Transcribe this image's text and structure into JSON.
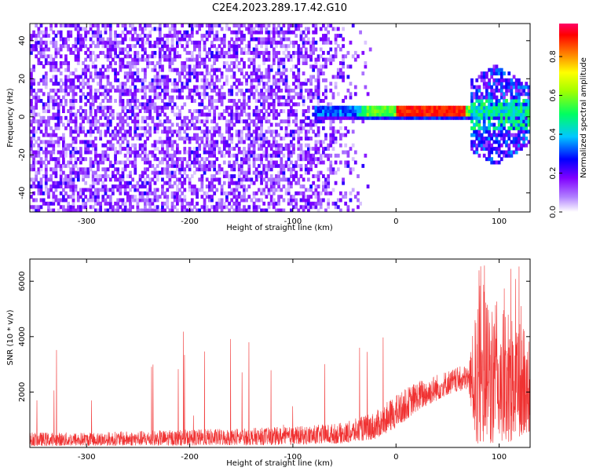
{
  "figure_title": "C2E4.2023.289.17.42.G10",
  "colors": {
    "snr_line": "#f03232",
    "spectrogram_background": "#a000ff",
    "axis": "#000000"
  },
  "chart_data": [
    {
      "type": "heatmap",
      "name": "spectrogram",
      "xlabel": "Height of straight line (km)",
      "ylabel": "Frequency (Hz)",
      "xlim": [
        -355,
        130
      ],
      "ylim": [
        -50,
        49
      ],
      "xticks": [
        -300,
        -200,
        -100,
        0,
        100
      ],
      "yticks": [
        -40,
        -20,
        0,
        20,
        40
      ],
      "grid": false,
      "colorbar": {
        "label": "Normalized spectral amplitude",
        "range": [
          0,
          0.97
        ],
        "ticks": [
          "0.0",
          "0.2",
          "0.4",
          "0.6",
          "0.8"
        ],
        "colormap": "rainbow (white → violet → blue → cyan → green → yellow → red → magenta)"
      },
      "features": {
        "noise_region_x": [
          -355,
          -45
        ],
        "noise_typical_amplitude": 0.1,
        "signal_band_center_hz": 2,
        "signal_band_x": [
          -80,
          130
        ],
        "signal_peak_x": [
          0,
          50
        ],
        "signal_peak_amplitude": 0.85,
        "broadband_region_x": [
          70,
          130
        ],
        "broadband_frequency_range_hz": [
          -25,
          25
        ]
      }
    },
    {
      "type": "line",
      "name": "snr",
      "xlabel": "Height of straight line (km)",
      "ylabel": "SNR (10 * v/v)",
      "xlim": [
        -355,
        130
      ],
      "ylim": [
        0,
        6800
      ],
      "xticks": [
        -300,
        -200,
        -100,
        0,
        100
      ],
      "yticks": [
        2000,
        4000,
        6000
      ],
      "grid": false,
      "series": [
        {
          "envelope_x": [
            -355,
            -300,
            -200,
            -100,
            -50,
            -20,
            0,
            20,
            50,
            70,
            78,
            90,
            100,
            110,
            120,
            130
          ],
          "envelope_low": [
            50,
            60,
            70,
            100,
            150,
            300,
            700,
            1300,
            1900,
            2100,
            150,
            100,
            150,
            200,
            300,
            500
          ],
          "envelope_typical_high": [
            550,
            550,
            650,
            750,
            900,
            1300,
            1900,
            2400,
            2800,
            3000,
            5000,
            5500,
            5200,
            5000,
            4500,
            4000
          ],
          "peak_max": 6700
        }
      ]
    }
  ]
}
